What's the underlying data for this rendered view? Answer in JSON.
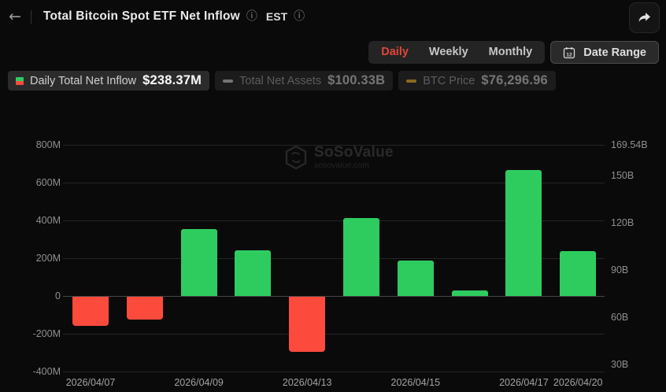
{
  "header": {
    "title": "Total Bitcoin Spot ETF Net Inflow",
    "timezone": "EST",
    "back_icon": "←",
    "info_icon": "ⓘ"
  },
  "controls": {
    "tabs": [
      {
        "label": "Daily",
        "active": true
      },
      {
        "label": "Weekly",
        "active": false
      },
      {
        "label": "Monthly",
        "active": false
      }
    ],
    "date_range": {
      "label": "Date Range",
      "calendar_day": "12"
    }
  },
  "legend": {
    "items": [
      {
        "label": "Daily Total Net Inflow",
        "value": "$238.37M",
        "active": true
      },
      {
        "label": "Total Net Assets",
        "value": "$100.33B",
        "active": false
      },
      {
        "label": "BTC Price",
        "value": "$76,296.96",
        "active": false
      }
    ]
  },
  "watermark": {
    "name": "SoSoValue",
    "domain": "sosovalue.com"
  },
  "chart_data": {
    "type": "bar",
    "title": "Total Bitcoin Spot ETF Net Inflow",
    "series_name": "Daily Total Net Inflow (USD, millions)",
    "values_M": [
      -155,
      -120,
      355,
      240,
      -290,
      410,
      185,
      28,
      665,
      238.37
    ],
    "x_tick_labels": [
      {
        "label": "2026/04/07",
        "bar_index": 0
      },
      {
        "label": "2026/04/09",
        "bar_index": 2
      },
      {
        "label": "2026/04/13",
        "bar_index": 4
      },
      {
        "label": "2026/04/15",
        "bar_index": 6
      },
      {
        "label": "2026/04/17",
        "bar_index": 8
      },
      {
        "label": "2026/04/20",
        "bar_index": 9
      }
    ],
    "left_axis": {
      "unit": "M",
      "range_M": [
        -400,
        800
      ],
      "ticks": [
        {
          "label": "800M",
          "value": 800
        },
        {
          "label": "600M",
          "value": 600
        },
        {
          "label": "400M",
          "value": 400
        },
        {
          "label": "200M",
          "value": 200
        },
        {
          "label": "0",
          "value": 0
        },
        {
          "label": "-200M",
          "value": -200
        },
        {
          "label": "-400M",
          "value": -400
        }
      ]
    },
    "right_axis": {
      "unit": "B",
      "ticks": [
        {
          "label": "169.54B",
          "value": 169.54
        },
        {
          "label": "150B",
          "value": 150
        },
        {
          "label": "120B",
          "value": 120
        },
        {
          "label": "90B",
          "value": 90
        },
        {
          "label": "60B",
          "value": 60
        },
        {
          "label": "30B",
          "value": 30
        }
      ]
    },
    "colors": {
      "positive": "#2ecc5f",
      "negative": "#fc4a3c"
    },
    "grid": true,
    "legend_position": "top-left"
  }
}
